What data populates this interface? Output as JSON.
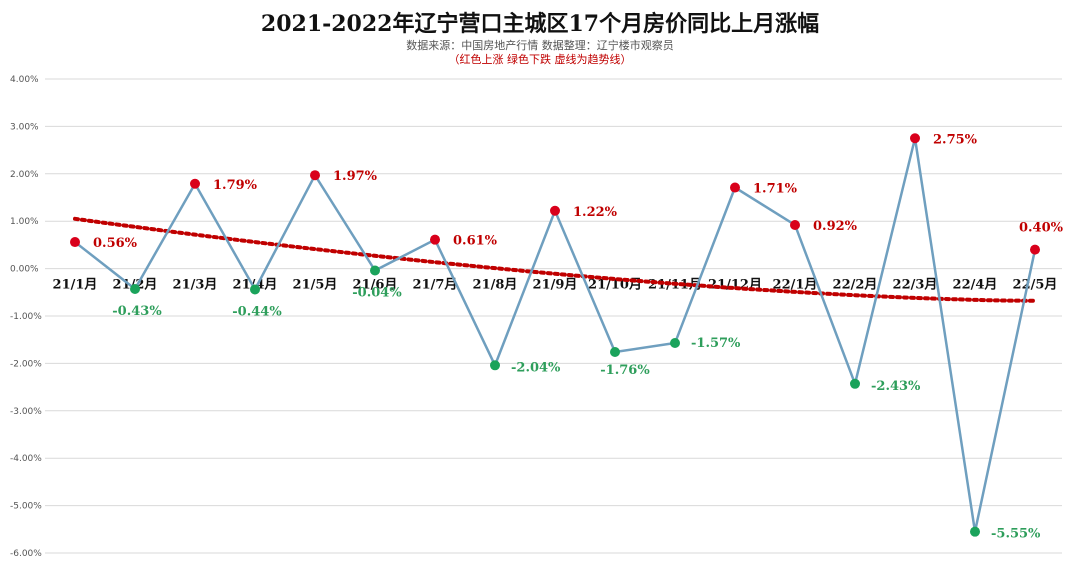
{
  "chart_data": {
    "type": "line",
    "title": "2021-2022年辽宁营口主城区17个月房价同比上月涨幅",
    "subtitle": "数据来源：中国房地产行情 数据整理：辽宁楼市观察员",
    "note": "（红色上涨  绿色下跌 虚线为趋势线）",
    "categories": [
      "21/1月",
      "21/2月",
      "21/3月",
      "21/4月",
      "21/5月",
      "21/6月",
      "21/7月",
      "21/8月",
      "21/9月",
      "21/10月",
      "21/11月",
      "21/12月",
      "22/1月",
      "22/2月",
      "22/3月",
      "22/4月",
      "22/5月"
    ],
    "values": [
      0.56,
      -0.43,
      1.79,
      -0.44,
      1.97,
      -0.04,
      0.61,
      -2.04,
      1.22,
      -1.76,
      -1.57,
      1.71,
      0.92,
      -2.43,
      2.75,
      -5.55,
      0.4
    ],
    "data_labels": [
      "0.56%",
      "-0.43%",
      "1.79%",
      "-0.44%",
      "1.97%",
      "-0.04%",
      "0.61%",
      "-2.04%",
      "1.22%",
      "-1.76%",
      "-1.57%",
      "1.71%",
      "0.92%",
      "-2.43%",
      "2.75%",
      "-5.55%",
      "0.40%"
    ],
    "y_tick_labels": [
      "4.00%",
      "3.00%",
      "2.00%",
      "1.00%",
      "0.00%",
      "-1.00%",
      "-2.00%",
      "-3.00%",
      "-4.00%",
      "-5.00%",
      "-6.00%"
    ],
    "ylim": [
      -6,
      4
    ],
    "grid": true,
    "trendline": {
      "style": "dotted",
      "color": "#c00000",
      "start": 1.05,
      "end": -0.68
    },
    "colors": {
      "up": "#d9001b",
      "down": "#1aa35b",
      "line": "#6f9fbf",
      "up_label": "#c00000",
      "down_label": "#2e9e5b"
    }
  }
}
